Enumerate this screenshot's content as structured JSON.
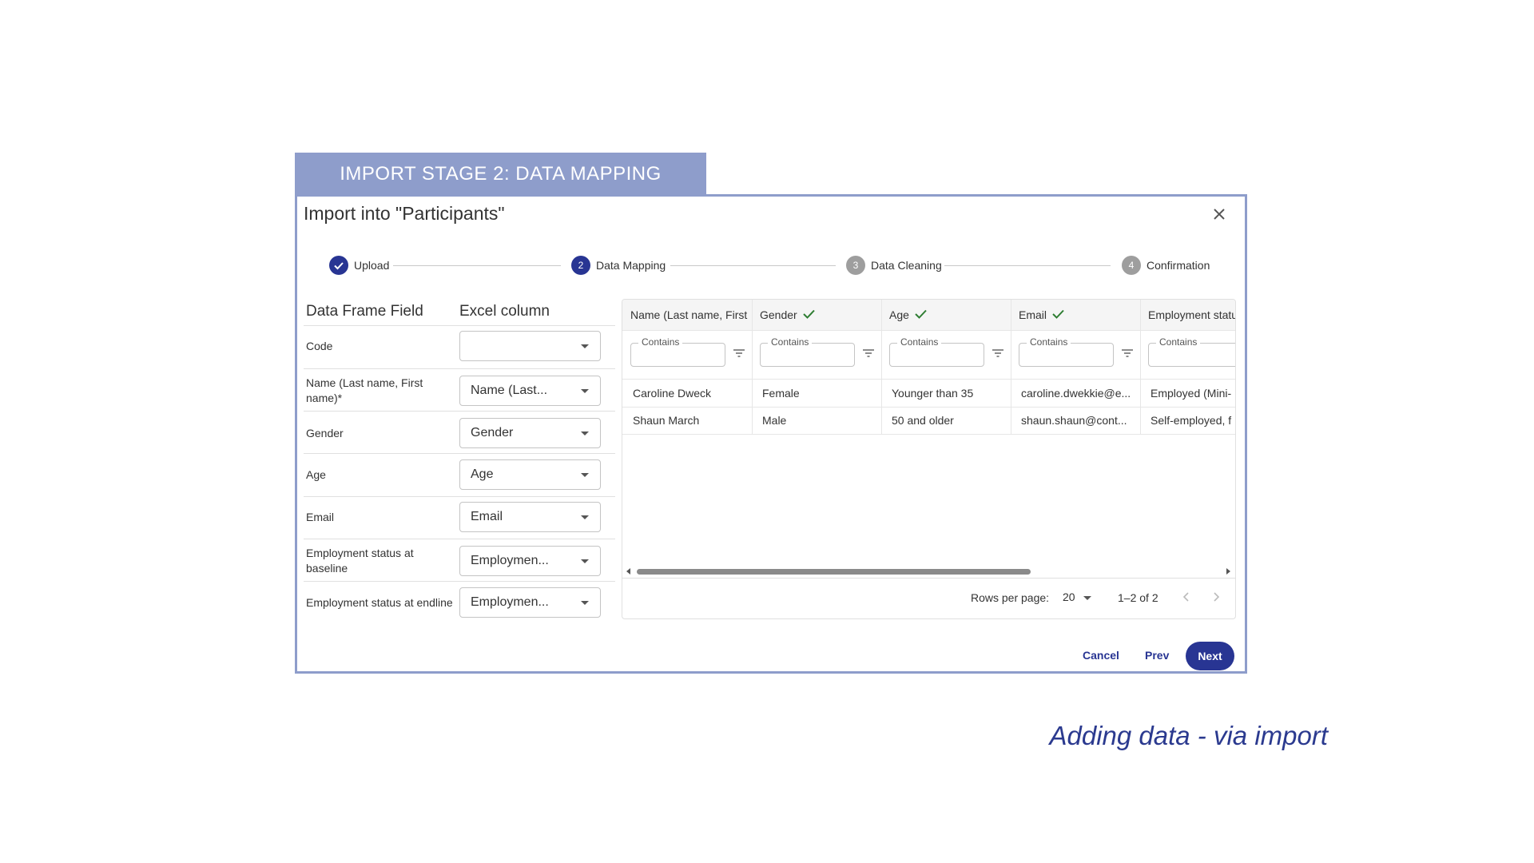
{
  "banner": "IMPORT STAGE 2: DATA MAPPING",
  "dialog": {
    "title": "Import into \"Participants\""
  },
  "steps": [
    {
      "label": "Upload",
      "status": "done"
    },
    {
      "number": 2,
      "label": "Data Mapping",
      "status": "active"
    },
    {
      "number": 3,
      "label": "Data Cleaning",
      "status": "pending"
    },
    {
      "number": 4,
      "label": "Confirmation",
      "status": "pending"
    }
  ],
  "mapping": {
    "headers": [
      "Data Frame Field",
      "Excel column"
    ],
    "rows": [
      {
        "field": "Code",
        "column": ""
      },
      {
        "field": "Name (Last name, First name)*",
        "column": "Name (Last..."
      },
      {
        "field": "Gender",
        "column": "Gender"
      },
      {
        "field": "Age",
        "column": "Age"
      },
      {
        "field": "Email",
        "column": "Email"
      },
      {
        "field": "Employment status at baseline",
        "column": "Employmen..."
      },
      {
        "field": "Employment status at endline",
        "column": "Employmen..."
      }
    ]
  },
  "grid": {
    "columns": [
      {
        "name": "Name (Last name, First",
        "checked": false,
        "filter": "Contains"
      },
      {
        "name": "Gender",
        "checked": true,
        "filter": "Contains"
      },
      {
        "name": "Age",
        "checked": true,
        "filter": "Contains"
      },
      {
        "name": "Email",
        "checked": true,
        "filter": "Contains"
      },
      {
        "name": "Employment statu",
        "checked": false,
        "filter": "Contains"
      }
    ],
    "rows": [
      [
        "Caroline Dweck",
        "Female",
        "Younger than 35",
        "caroline.dwekkie@e...",
        "Employed (Mini-"
      ],
      [
        "Shaun March",
        "Male",
        "50 and older",
        "shaun.shaun@cont...",
        "Self-employed, f"
      ]
    ],
    "pagination": {
      "rows_per_page_label": "Rows per page:",
      "rows_per_page": 20,
      "range": "1–2 of 2"
    }
  },
  "buttons": {
    "cancel": "Cancel",
    "prev": "Prev",
    "next": "Next"
  },
  "caption": "Adding data - via import"
}
